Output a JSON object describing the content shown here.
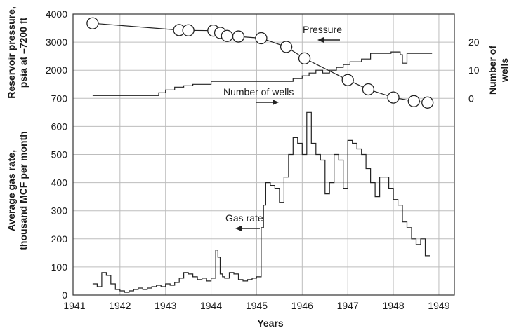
{
  "chart_data": {
    "type": "line",
    "xlabel": "Years",
    "x_ticks": [
      "1941",
      "1942",
      "1943",
      "1944",
      "1945",
      "1946",
      "1947",
      "1948",
      "1949"
    ],
    "xlim": [
      1940.97,
      1949.34
    ],
    "grid": true,
    "left_axis_labels": {
      "upper": [
        "Reservoir pressure,",
        "psia at –7200 ft"
      ],
      "lower": [
        "Average gas rate,",
        "thousand MCF per month"
      ]
    },
    "right_axis_label": [
      "Number of",
      "wells"
    ],
    "left_ticks": [
      {
        "label": "4000",
        "level": 10
      },
      {
        "label": "3000",
        "level": 9
      },
      {
        "label": "2000",
        "level": 8
      },
      {
        "label": "700",
        "level": 7
      },
      {
        "label": "600",
        "level": 6
      },
      {
        "label": "500",
        "level": 5
      },
      {
        "label": "400",
        "level": 4
      },
      {
        "label": "300",
        "level": 3
      },
      {
        "label": "200",
        "level": 2
      },
      {
        "label": "100",
        "level": 1
      },
      {
        "label": "0",
        "level": 0
      }
    ],
    "right_ticks": [
      {
        "label": "20",
        "value": 20
      },
      {
        "label": "10",
        "value": 10
      },
      {
        "label": "0",
        "value": 0
      }
    ],
    "series": [
      {
        "name": "Pressure",
        "axis": "left-upper",
        "unit": "psia",
        "marker": "circle",
        "x": [
          1941.4,
          1943.3,
          1943.5,
          1944.05,
          1944.2,
          1944.35,
          1944.6,
          1945.1,
          1945.65,
          1946.05,
          1947.0,
          1947.45,
          1948.0,
          1948.45,
          1948.75
        ],
        "y": [
          3670,
          3430,
          3420,
          3410,
          3330,
          3220,
          3200,
          3140,
          2830,
          2420,
          1650,
          1320,
          1030,
          900,
          850
        ]
      },
      {
        "name": "Number of wells",
        "axis": "right",
        "unit": "wells",
        "x": [
          1941.4,
          1942.75,
          1942.85,
          1943.0,
          1943.2,
          1943.4,
          1943.6,
          1943.8,
          1944.0,
          1944.3,
          1944.5,
          1945.6,
          1945.8,
          1946.0,
          1946.15,
          1946.3,
          1946.45,
          1946.6,
          1946.75,
          1946.9,
          1947.05,
          1947.3,
          1947.5,
          1947.7,
          1947.95,
          1948.15,
          1948.2,
          1948.3,
          1948.75
        ],
        "y": [
          1,
          1,
          2,
          3,
          4,
          4.5,
          5,
          5,
          6,
          6,
          6,
          6,
          7,
          8,
          9,
          10,
          9,
          10,
          11,
          12,
          13,
          14,
          16,
          16,
          16.5,
          15.5,
          12.5,
          16,
          16
        ]
      },
      {
        "name": "Gas rate",
        "axis": "left-lower",
        "unit": "thousand MCF per month",
        "x": [
          1941.4,
          1941.5,
          1941.6,
          1941.7,
          1941.8,
          1941.9,
          1942.0,
          1942.1,
          1942.2,
          1942.3,
          1942.4,
          1942.5,
          1942.6,
          1942.7,
          1942.8,
          1942.9,
          1943.0,
          1943.1,
          1943.2,
          1943.3,
          1943.4,
          1943.5,
          1943.6,
          1943.7,
          1943.8,
          1943.9,
          1944.0,
          1944.1,
          1944.15,
          1944.2,
          1944.25,
          1944.3,
          1944.4,
          1944.5,
          1944.6,
          1944.7,
          1944.8,
          1944.9,
          1945.0,
          1945.1,
          1945.15,
          1945.2,
          1945.3,
          1945.4,
          1945.5,
          1945.6,
          1945.7,
          1945.8,
          1945.9,
          1946.0,
          1946.1,
          1946.2,
          1946.3,
          1946.4,
          1946.5,
          1946.6,
          1946.7,
          1946.8,
          1946.9,
          1947.0,
          1947.1,
          1947.2,
          1947.3,
          1947.4,
          1947.5,
          1947.6,
          1947.7,
          1947.8,
          1947.9,
          1948.0,
          1948.1,
          1948.2,
          1948.3,
          1948.4,
          1948.5,
          1948.6,
          1948.7
        ],
        "y": [
          40,
          30,
          80,
          70,
          40,
          20,
          15,
          10,
          15,
          20,
          25,
          20,
          25,
          30,
          35,
          30,
          40,
          35,
          45,
          60,
          80,
          75,
          65,
          55,
          60,
          50,
          60,
          160,
          135,
          75,
          65,
          60,
          80,
          75,
          55,
          50,
          55,
          60,
          65,
          240,
          320,
          400,
          390,
          380,
          330,
          420,
          500,
          560,
          540,
          500,
          650,
          540,
          500,
          480,
          360,
          400,
          500,
          480,
          380,
          550,
          540,
          520,
          500,
          450,
          400,
          350,
          420,
          420,
          380,
          340,
          320,
          260,
          240,
          200,
          180,
          200,
          140
        ]
      }
    ],
    "annotations": [
      {
        "text": "Pressure",
        "series": "Pressure",
        "arrow": "left"
      },
      {
        "text": "Number of wells",
        "series": "Number of wells",
        "arrow": "right"
      },
      {
        "text": "Gas rate",
        "series": "Gas rate",
        "arrow": "left"
      }
    ]
  }
}
